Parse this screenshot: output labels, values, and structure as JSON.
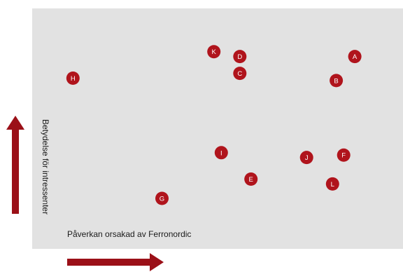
{
  "chart_data": {
    "type": "scatter",
    "title": "",
    "xlabel": "Påverkan orsakad av Ferronordic",
    "ylabel": "Betydelse för intressenter",
    "xlim": [
      0,
      100
    ],
    "ylim": [
      0,
      100
    ],
    "grid": false,
    "axis_tick_labels": false,
    "point_color": "#b0141c",
    "plot_background": "#e2e2e2",
    "arrow_color": "#9b1018",
    "points": [
      {
        "label": "A",
        "x": 87,
        "y": 80
      },
      {
        "label": "B",
        "x": 82,
        "y": 70
      },
      {
        "label": "C",
        "x": 56,
        "y": 73
      },
      {
        "label": "D",
        "x": 56,
        "y": 80
      },
      {
        "label": "E",
        "x": 59,
        "y": 29
      },
      {
        "label": "F",
        "x": 84,
        "y": 39
      },
      {
        "label": "G",
        "x": 35,
        "y": 21
      },
      {
        "label": "H",
        "x": 11,
        "y": 71
      },
      {
        "label": "I",
        "x": 51,
        "y": 40
      },
      {
        "label": "J",
        "x": 74,
        "y": 38
      },
      {
        "label": "K",
        "x": 49,
        "y": 82
      },
      {
        "label": "L",
        "x": 81,
        "y": 27
      }
    ]
  }
}
